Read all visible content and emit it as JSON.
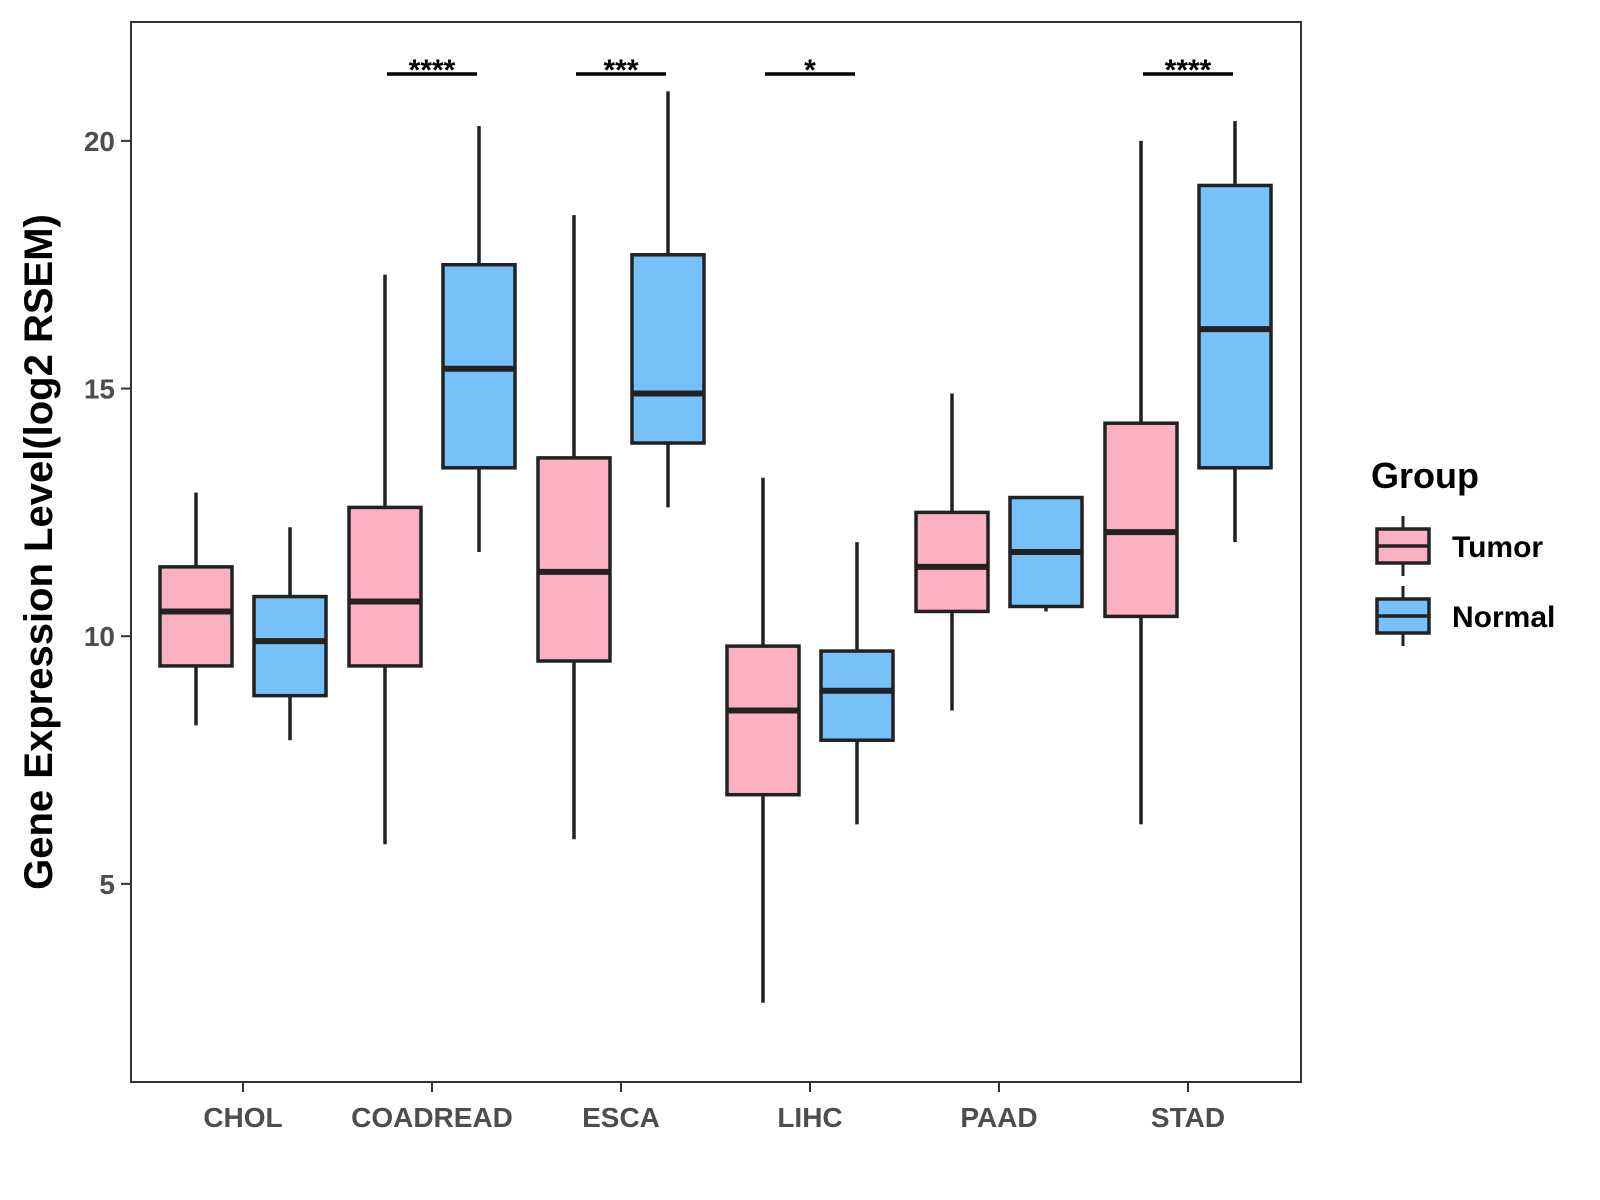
{
  "chart_data": {
    "type": "box",
    "title": "",
    "xlabel": "",
    "ylabel": "Gene Expression Level(log2 RSEM)",
    "ylim": [
      1,
      22.4
    ],
    "yticks": [
      5,
      10,
      15,
      20
    ],
    "categories": [
      "CHOL",
      "COADREAD",
      "ESCA",
      "LIHC",
      "PAAD",
      "STAD"
    ],
    "legend": {
      "title": "Group",
      "position": "right",
      "entries": [
        {
          "name": "Tumor",
          "color": "#fcb1c3"
        },
        {
          "name": "Normal",
          "color": "#77c1fa"
        }
      ]
    },
    "series": [
      {
        "name": "Tumor",
        "color": "#fcb1c3",
        "boxes": [
          {
            "min": 8.2,
            "q1": 9.4,
            "median": 10.5,
            "q3": 11.4,
            "max": 12.9
          },
          {
            "min": 5.8,
            "q1": 9.4,
            "median": 10.7,
            "q3": 12.6,
            "max": 17.3
          },
          {
            "min": 5.9,
            "q1": 9.5,
            "median": 11.3,
            "q3": 13.6,
            "max": 18.5
          },
          {
            "min": 2.6,
            "q1": 6.8,
            "median": 8.5,
            "q3": 9.8,
            "max": 13.2
          },
          {
            "min": 8.5,
            "q1": 10.5,
            "median": 11.4,
            "q3": 12.5,
            "max": 14.9
          },
          {
            "min": 6.2,
            "q1": 10.4,
            "median": 12.1,
            "q3": 14.3,
            "max": 20.0
          }
        ]
      },
      {
        "name": "Normal",
        "color": "#77c1fa",
        "boxes": [
          {
            "min": 7.9,
            "q1": 8.8,
            "median": 9.9,
            "q3": 10.8,
            "max": 12.2
          },
          {
            "min": 11.7,
            "q1": 13.4,
            "median": 15.4,
            "q3": 17.5,
            "max": 20.3
          },
          {
            "min": 12.6,
            "q1": 13.9,
            "median": 14.9,
            "q3": 17.7,
            "max": 21.0
          },
          {
            "min": 6.2,
            "q1": 7.9,
            "median": 8.9,
            "q3": 9.7,
            "max": 11.9
          },
          {
            "min": 10.5,
            "q1": 10.6,
            "median": 11.7,
            "q3": 12.8,
            "max": 12.8
          },
          {
            "min": 11.9,
            "q1": 13.4,
            "median": 16.2,
            "q3": 19.1,
            "max": 20.4
          }
        ]
      }
    ],
    "significance": [
      {
        "category": "COADREAD",
        "label": "****"
      },
      {
        "category": "ESCA",
        "label": "***"
      },
      {
        "category": "LIHC",
        "label": "*"
      },
      {
        "category": "STAD",
        "label": "****"
      }
    ]
  }
}
